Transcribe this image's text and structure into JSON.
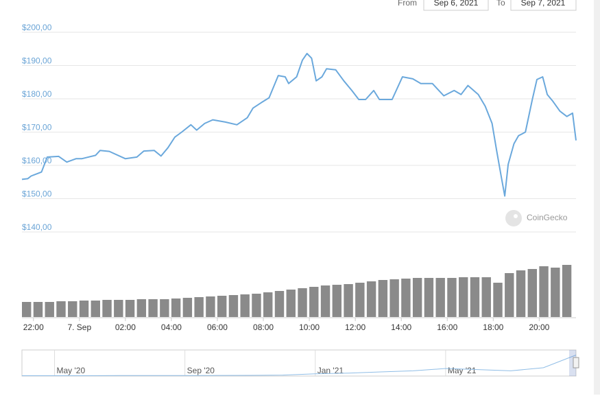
{
  "range_selector": {
    "from_label": "From",
    "from": "Sep 6, 2021",
    "to_label": "To",
    "to": "Sep 7, 2021"
  },
  "watermark": "CoinGecko",
  "chart_data": [
    {
      "type": "line",
      "color": "#6aa8dc",
      "x": [
        21.5,
        21.75,
        21.9,
        22.35,
        22.6,
        23.1,
        23.45,
        23.85,
        24.1,
        24.7,
        24.9,
        25.3,
        26,
        26.5,
        26.8,
        27.25,
        27.55,
        27.85,
        28.15,
        28.45,
        28.85,
        29.1,
        29.45,
        29.8,
        30.35,
        30.85,
        31.3,
        31.55,
        31.9,
        32.25,
        32.65,
        32.95,
        33.1,
        33.45,
        33.7,
        33.9,
        34.1,
        34.3,
        34.55,
        34.75,
        35.15,
        35.5,
        35.85,
        36.15,
        36.45,
        36.8,
        37.05,
        37.6,
        38.05,
        38.5,
        38.85,
        39.35,
        39.85,
        40.3,
        40.6,
        40.9,
        41.35,
        41.65,
        41.95,
        42.15,
        42.35,
        42.5,
        42.65,
        42.9,
        43.1,
        43.4,
        43.7,
        43.9,
        44.15,
        44.35,
        44.6,
        44.9,
        45.2,
        45.45,
        45.6
      ],
      "values": [
        155.8,
        156,
        156.8,
        158,
        162.5,
        162.7,
        161,
        162,
        162,
        163,
        164.5,
        164.2,
        162,
        162.5,
        164.3,
        164.5,
        162.8,
        165.3,
        168.5,
        170,
        172.2,
        170.6,
        172.6,
        173.7,
        173,
        172.2,
        174.3,
        177.2,
        178.8,
        180.3,
        187,
        186.6,
        184.6,
        186.6,
        191.6,
        193.6,
        192.2,
        185.4,
        186.6,
        189,
        188.7,
        185.4,
        182.5,
        179.8,
        179.8,
        182.5,
        179.8,
        179.8,
        186.6,
        186,
        184.6,
        184.6,
        180.9,
        182.5,
        181.3,
        184,
        181.3,
        177.8,
        172.6,
        164.4,
        156.6,
        150.8,
        160.3,
        166.5,
        168.9,
        170,
        179.8,
        185.8,
        186.6,
        181.3,
        179.2,
        176.3,
        174.7,
        175.7,
        167.5
      ],
      "xlim": [
        21.5,
        45.6
      ],
      "ylim": [
        140,
        200
      ],
      "yticks": [
        {
          "value": 140,
          "label": "$140,00"
        },
        {
          "value": 150,
          "label": "$150,00"
        },
        {
          "value": 160,
          "label": "$160,00"
        },
        {
          "value": 170,
          "label": "$170,00"
        },
        {
          "value": 180,
          "label": "$180,00"
        },
        {
          "value": 190,
          "label": "$190,00"
        },
        {
          "value": 200,
          "label": "$200,00"
        }
      ],
      "xticks": [
        {
          "value": 22,
          "label": "22:00"
        },
        {
          "value": 24,
          "label": "7. Sep"
        },
        {
          "value": 26,
          "label": "02:00"
        },
        {
          "value": 28,
          "label": "04:00"
        },
        {
          "value": 30,
          "label": "06:00"
        },
        {
          "value": 32,
          "label": "08:00"
        },
        {
          "value": 34,
          "label": "10:00"
        },
        {
          "value": 36,
          "label": "12:00"
        },
        {
          "value": 38,
          "label": "14:00"
        },
        {
          "value": 40,
          "label": "16:00"
        },
        {
          "value": 42,
          "label": "18:00"
        },
        {
          "value": 44,
          "label": "20:00"
        }
      ],
      "grid": true
    },
    {
      "type": "bar",
      "color": "#8a8a8a",
      "x": [
        21.5,
        22,
        22.5,
        23,
        23.5,
        24,
        24.5,
        25,
        25.5,
        26,
        26.5,
        27,
        27.5,
        28,
        28.5,
        29,
        29.5,
        30,
        30.5,
        31,
        31.5,
        32,
        32.5,
        33,
        33.5,
        34,
        34.5,
        35,
        35.5,
        36,
        36.5,
        37,
        37.5,
        38,
        38.5,
        39,
        39.5,
        40,
        40.5,
        41,
        41.5,
        42,
        42.5,
        43,
        43.5,
        44,
        44.5,
        45
      ],
      "values": [
        22,
        22,
        22,
        23,
        23,
        24,
        24,
        25,
        25,
        25,
        26,
        26,
        26,
        27,
        28,
        29,
        30,
        31,
        32,
        33,
        34,
        36,
        38,
        40,
        42,
        44,
        46,
        47,
        48,
        50,
        52,
        54,
        55,
        56,
        57,
        57,
        57,
        57,
        58,
        58,
        58,
        50,
        64,
        68,
        70,
        74,
        72,
        76
      ],
      "xlim": [
        21.5,
        45.6
      ],
      "ylim": [
        0,
        80
      ]
    },
    {
      "type": "navigator",
      "color": "#8fbde6",
      "x": [
        "2020-04",
        "2020-05",
        "2020-06",
        "2020-07",
        "2020-08",
        "2020-09",
        "2020-10",
        "2020-11",
        "2020-12",
        "2021-01",
        "2021-02",
        "2021-03",
        "2021-04",
        "2021-05",
        "2021-06",
        "2021-07",
        "2021-08",
        "2021-09"
      ],
      "values": [
        3,
        3,
        3,
        4,
        4,
        4,
        5,
        6,
        8,
        19,
        25,
        35,
        45,
        65,
        55,
        45,
        71,
        180
      ],
      "xlim": [
        "2020-04",
        "2021-09"
      ],
      "ylim": [
        0,
        200
      ],
      "xticks": [
        {
          "value": "2020-05",
          "label": "May '20"
        },
        {
          "value": "2020-09",
          "label": "Sep '20"
        },
        {
          "value": "2021-01",
          "label": "Jan '21"
        },
        {
          "value": "2021-05",
          "label": "May '21"
        }
      ]
    }
  ]
}
